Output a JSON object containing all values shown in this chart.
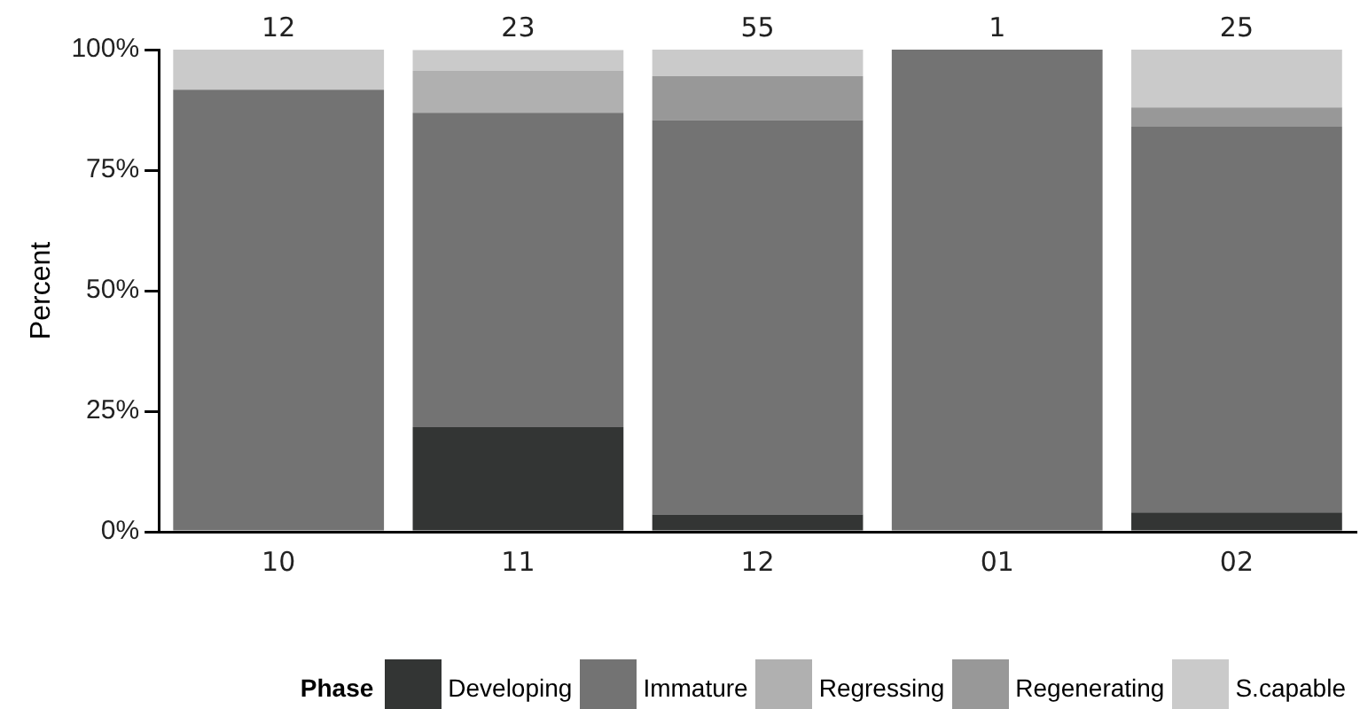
{
  "chart_data": {
    "type": "bar",
    "stacked": true,
    "ylabel": "Percent",
    "legend_title": "Phase",
    "legend": "bottom",
    "grid": false,
    "categories": [
      "10",
      "11",
      "12",
      "01",
      "02"
    ],
    "ylim": [
      0,
      100
    ],
    "yticks": [
      {
        "value": 0,
        "label": "0%"
      },
      {
        "value": 25,
        "label": "25%"
      },
      {
        "value": 50,
        "label": "50%"
      },
      {
        "value": 75,
        "label": "75%"
      },
      {
        "value": 100,
        "label": "100%"
      }
    ],
    "annotations": [
      {
        "text": "12",
        "x": "10",
        "y": 100
      },
      {
        "text": "23",
        "x": "11",
        "y": 100
      },
      {
        "text": "55",
        "x": "12",
        "y": 100
      },
      {
        "text": "1",
        "x": "01",
        "y": 100
      },
      {
        "text": "25",
        "x": "02",
        "y": 100
      }
    ],
    "series": [
      {
        "name": "Developing",
        "color": "#333534",
        "values": [
          0,
          21.7,
          3.6,
          0,
          4
        ]
      },
      {
        "name": "Immature",
        "color": "#737373",
        "values": [
          91.7,
          65.2,
          81.8,
          100,
          80
        ]
      },
      {
        "name": "Regressing",
        "color": "#b0b0b0",
        "values": [
          0,
          8.7,
          0,
          0,
          0
        ]
      },
      {
        "name": "Regenerating",
        "color": "#989898",
        "values": [
          0,
          0,
          9.1,
          0,
          4
        ]
      },
      {
        "name": "S.capable",
        "color": "#cacaca",
        "values": [
          8.3,
          4.3,
          5.5,
          0,
          12
        ]
      }
    ]
  }
}
